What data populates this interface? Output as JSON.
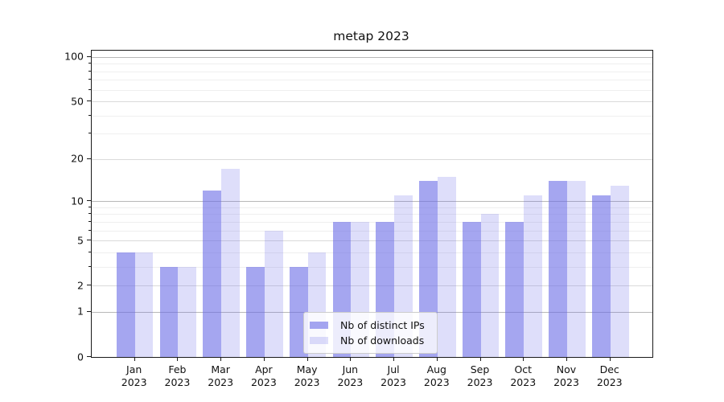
{
  "title": "metap 2023",
  "chart_data": {
    "type": "bar",
    "title": "metap 2023",
    "x": [
      "Jan 2023",
      "Feb 2023",
      "Mar 2023",
      "Apr 2023",
      "May 2023",
      "Jun 2023",
      "Jul 2023",
      "Aug 2023",
      "Sep 2023",
      "Oct 2023",
      "Nov 2023",
      "Dec 2023"
    ],
    "series": [
      {
        "name": "Nb of distinct IPs",
        "values": [
          4,
          3,
          12,
          3,
          3,
          7,
          7,
          14,
          7,
          7,
          14,
          11
        ],
        "color": "rgba(105,107,230,0.60)"
      },
      {
        "name": "Nb of downloads",
        "values": [
          4,
          3,
          17,
          6,
          4,
          7,
          11,
          15,
          8,
          11,
          14,
          13
        ],
        "color": "rgba(105,107,230,0.22)"
      }
    ],
    "yscale": "log1p",
    "ylim": [
      0,
      110
    ],
    "y_major_ticks": [
      0,
      1,
      2,
      5,
      10,
      20,
      50,
      100
    ],
    "y_minor_ticks": [
      3,
      4,
      6,
      7,
      8,
      9,
      30,
      40,
      60,
      70,
      80,
      90
    ],
    "grid": "horizontal",
    "legend_position": "lower center"
  },
  "axis": {
    "months": [
      "Jan",
      "Feb",
      "Mar",
      "Apr",
      "May",
      "Jun",
      "Jul",
      "Aug",
      "Sep",
      "Oct",
      "Nov",
      "Dec"
    ],
    "year": "2023"
  },
  "legend": {
    "items": [
      "Nb of distinct IPs",
      "Nb of downloads"
    ]
  },
  "colors": {
    "grid_decade": "#b8b8b8",
    "grid_major": "#dadada",
    "grid_minor": "#efefef",
    "axis": "#1a1a1a"
  }
}
